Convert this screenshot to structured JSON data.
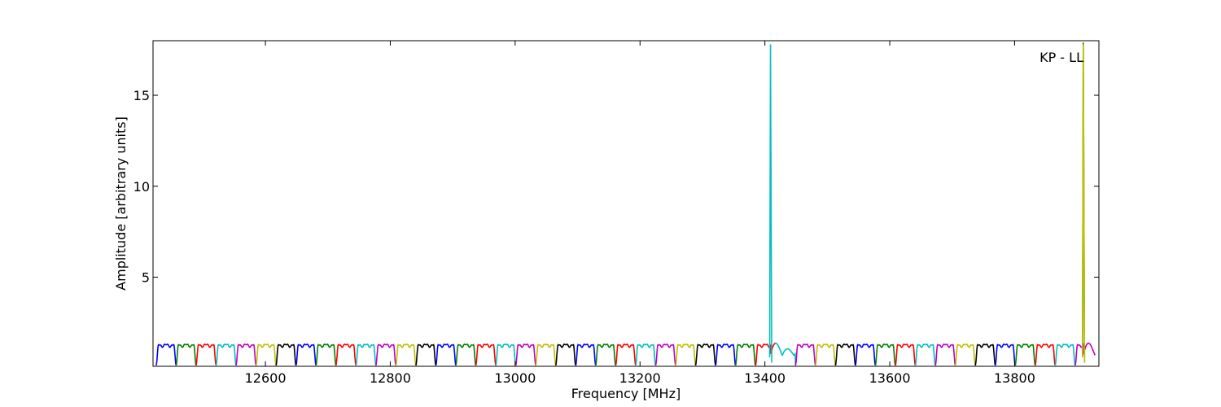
{
  "chart_data": {
    "type": "line",
    "title": "",
    "annotation": "KP - LL",
    "xlabel": "Frequency [MHz]",
    "ylabel": "Amplitude [arbitrary units]",
    "xlim": [
      12420,
      13935
    ],
    "ylim": [
      0.1,
      18
    ],
    "x_ticks": [
      12600,
      12800,
      13000,
      13200,
      13400,
      13600,
      13800
    ],
    "y_ticks": [
      5,
      10,
      15
    ],
    "grid": false,
    "legend": "none",
    "colors": [
      "#0000ff",
      "#008000",
      "#ff0000",
      "#00bfbf",
      "#bf00bf",
      "#bfbf00",
      "#000000"
    ],
    "channel_width_mhz": 32,
    "channel_start_mhz": 12425,
    "channel_count": 47,
    "channel_peak_amplitude": 1.25,
    "channel_edge_amplitude": 0.15,
    "spikes": [
      {
        "x": 13910,
        "y": 17.9,
        "color": "#008000"
      },
      {
        "x": 13409,
        "y": 17.8,
        "color": "#00bfbf"
      },
      {
        "x": 13910,
        "y": 17.8,
        "color": "#bfbf00"
      }
    ]
  }
}
